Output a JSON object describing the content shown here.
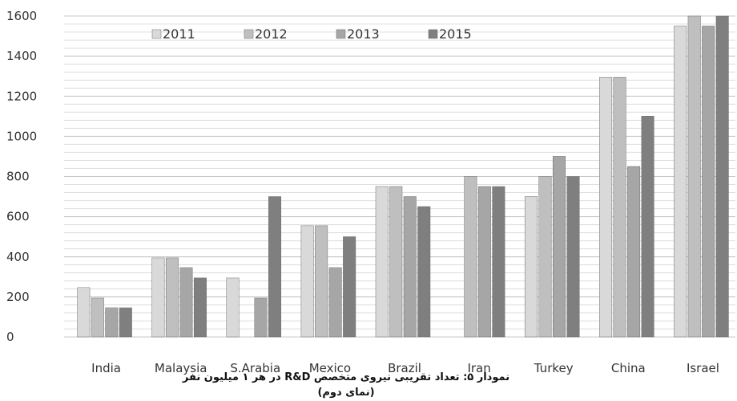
{
  "chart_data": {
    "type": "bar",
    "categories": [
      "India",
      "Malaysia",
      "S.Arabia",
      "Mexico",
      "Brazil",
      "Iran",
      "Turkey",
      "China",
      "Israel"
    ],
    "series": [
      {
        "name": "2011",
        "color": "#d9d9d9",
        "values": [
          245,
          395,
          295,
          555,
          750,
          null,
          700,
          1295,
          1550
        ]
      },
      {
        "name": "2012",
        "color": "#bfbfbf",
        "values": [
          195,
          395,
          null,
          555,
          750,
          800,
          800,
          1295,
          1600
        ]
      },
      {
        "name": "2013",
        "color": "#a6a6a6",
        "values": [
          145,
          345,
          195,
          345,
          700,
          750,
          900,
          850,
          1550
        ]
      },
      {
        "name": "2015",
        "color": "#7f7f7f",
        "values": [
          145,
          295,
          700,
          500,
          650,
          750,
          800,
          1100,
          1600
        ]
      }
    ],
    "yticks": [
      0,
      200,
      400,
      600,
      800,
      1000,
      1200,
      1400,
      1600
    ],
    "ylim": [
      0,
      1600
    ],
    "grid": true,
    "legend_position": "top-left",
    "caption_line1": "نمودار ۵: تعداد تقریبی نیروی متخصص R&D در هر ۱ میلیون نفر",
    "caption_line2": "(نمای دوم)"
  }
}
